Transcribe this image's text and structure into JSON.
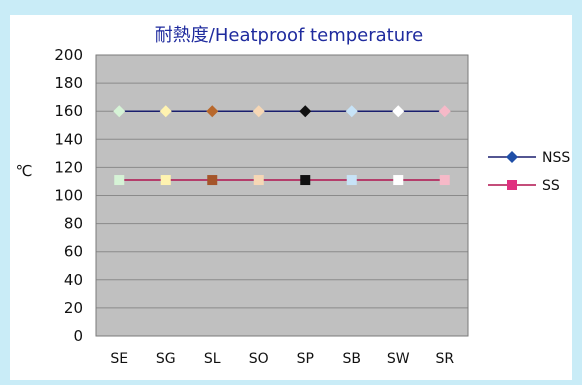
{
  "chart_data": {
    "type": "line",
    "title": "耐熱度/Heatproof temperature",
    "ylabel": "℃",
    "xlabel": "",
    "categories": [
      "SE",
      "SG",
      "SL",
      "SO",
      "SP",
      "SB",
      "SW",
      "SR"
    ],
    "ylim": [
      0,
      200
    ],
    "yticks": [
      0,
      20,
      40,
      60,
      80,
      100,
      120,
      140,
      160,
      180,
      200
    ],
    "grid": true,
    "legend_position": "right",
    "series": [
      {
        "name": "NSS",
        "values": [
          160,
          160,
          160,
          160,
          160,
          160,
          160,
          160
        ],
        "line_color": "#1a1f6e",
        "marker": "diamond",
        "marker_colors": [
          "#d6f3d6",
          "#fff3b0",
          "#b8682c",
          "#f6d7b5",
          "#111111",
          "#c7e3f7",
          "#ffffff",
          "#f6b9c8"
        ],
        "legend_marker_color": "#1f4fa8"
      },
      {
        "name": "SS",
        "values": [
          111,
          111,
          111,
          111,
          111,
          111,
          111,
          111
        ],
        "line_color": "#b0124f",
        "marker": "square",
        "marker_colors": [
          "#d6f3d6",
          "#fff3b0",
          "#a5552a",
          "#f6d7b5",
          "#111111",
          "#c7e3f7",
          "#ffffff",
          "#f6b9c8"
        ],
        "legend_marker_color": "#e0307f"
      }
    ],
    "colors": {
      "page_background": "#c9ecf7",
      "panel_background": "#ffffff",
      "plot_background": "#c0c0c0",
      "gridline": "#8a8a8a",
      "title": "#1f2b9e"
    }
  }
}
